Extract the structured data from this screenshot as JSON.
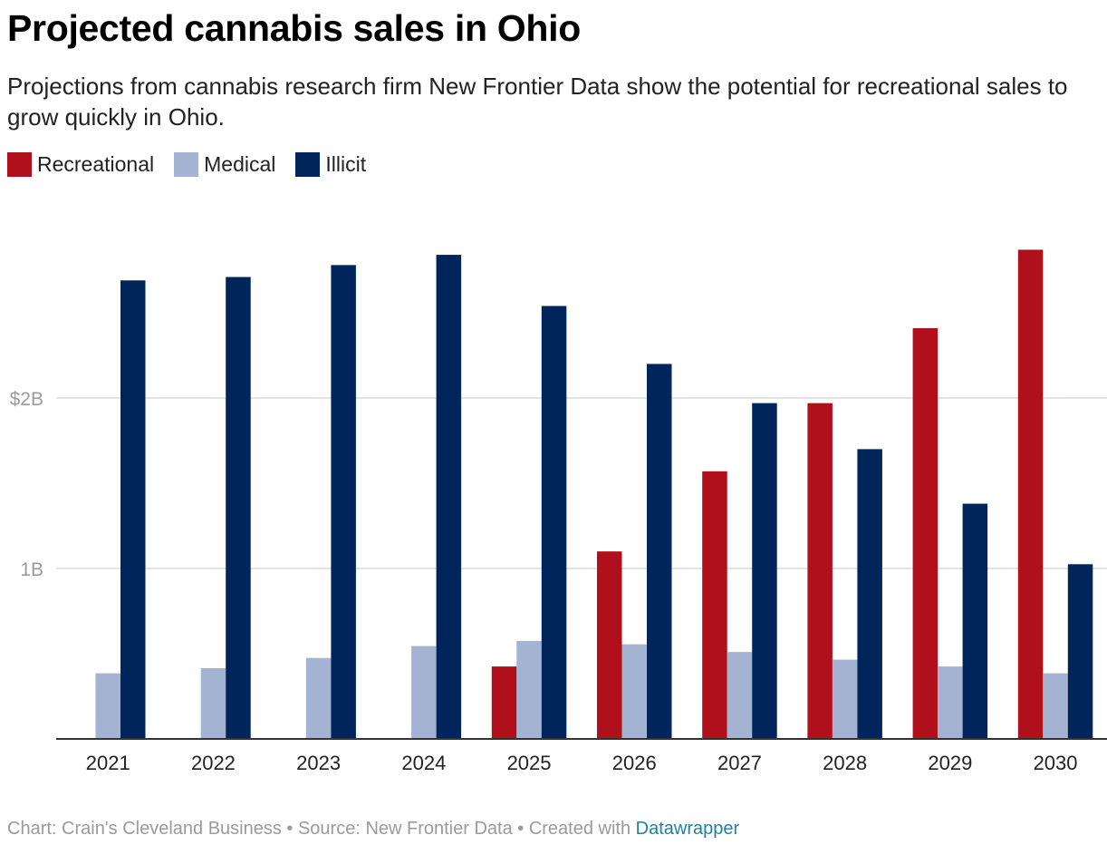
{
  "header": {
    "title": "Projected cannabis sales in Ohio",
    "subtitle": "Projections from cannabis research firm New Frontier Data show the potential for recreational sales to grow quickly in Ohio."
  },
  "footer": {
    "credit": "Chart: Crain's Cleveland Business • Source: New Frontier Data • Created with ",
    "link_text": "Datawrapper"
  },
  "colors": {
    "recreational": "#b0101b",
    "medical": "#a3b3d1",
    "illicit": "#00255a",
    "grid": "#e3e3e3",
    "axis": "#333333",
    "tick_label": "#9a9a9a"
  },
  "chart_data": {
    "type": "bar",
    "title": "Projected cannabis sales in Ohio",
    "xlabel": "",
    "ylabel": "",
    "ylim": [
      0,
      3000000000
    ],
    "y_ticks": [
      {
        "value": 1000000000,
        "label": "1B"
      },
      {
        "value": 2000000000,
        "label": "$2B"
      }
    ],
    "grid": true,
    "legend_position": "top-left",
    "categories": [
      "2021",
      "2022",
      "2023",
      "2024",
      "2025",
      "2026",
      "2027",
      "2028",
      "2029",
      "2030"
    ],
    "series": [
      {
        "name": "Recreational",
        "color": "#b0101b",
        "values": [
          0,
          0,
          0,
          0,
          425000000,
          1100000000,
          1570000000,
          1970000000,
          2410000000,
          2870000000
        ]
      },
      {
        "name": "Medical",
        "color": "#a3b3d1",
        "values": [
          385000000,
          415000000,
          475000000,
          545000000,
          575000000,
          555000000,
          510000000,
          465000000,
          425000000,
          385000000
        ]
      },
      {
        "name": "Illicit",
        "color": "#00255a",
        "values": [
          2690000000,
          2710000000,
          2780000000,
          2840000000,
          2540000000,
          2200000000,
          1970000000,
          1700000000,
          1380000000,
          1025000000
        ]
      }
    ]
  }
}
